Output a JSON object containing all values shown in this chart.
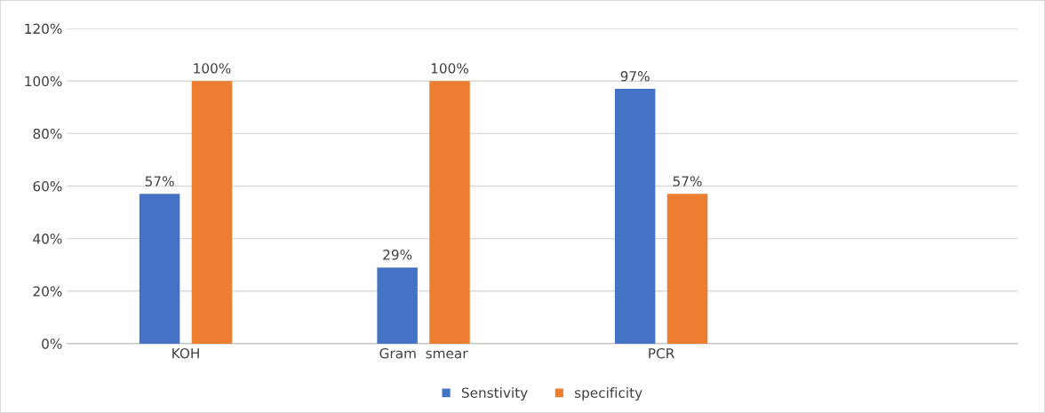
{
  "chart_data": {
    "type": "bar",
    "categories": [
      "KOH",
      "Gram  smear",
      "PCR",
      null
    ],
    "series": [
      {
        "name": "Senstivity",
        "color": "#4472c4",
        "values": [
          57,
          29,
          97,
          null
        ],
        "value_labels": [
          "57%",
          "29%",
          "97%",
          null
        ]
      },
      {
        "name": "specificity",
        "color": "#ed7d31",
        "values": [
          100,
          100,
          57,
          null
        ],
        "value_labels": [
          "100%",
          "100%",
          "57%",
          null
        ]
      }
    ],
    "ylim": [
      0,
      120
    ],
    "yticks": [
      {
        "value": 0,
        "label": "0%"
      },
      {
        "value": 20,
        "label": "20%"
      },
      {
        "value": 40,
        "label": "40%"
      },
      {
        "value": 60,
        "label": "60%"
      },
      {
        "value": 80,
        "label": "80%"
      },
      {
        "value": 100,
        "label": "100%"
      },
      {
        "value": 120,
        "label": "120%"
      }
    ],
    "grid": "y",
    "legend": "bottom"
  }
}
